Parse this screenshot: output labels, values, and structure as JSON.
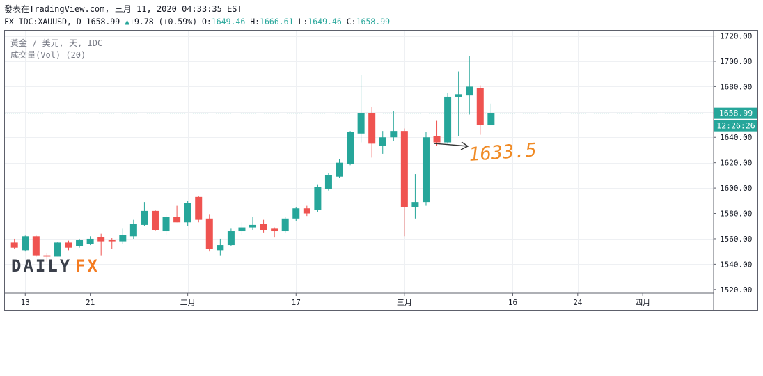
{
  "header": {
    "line1": "發表在TradingView.com, 三月 11, 2020 04:33:35 EST",
    "symbol_line": "FX_IDC:XAUUSD, D",
    "last": "1658.99",
    "arrow": "▲",
    "change": "+9.78 (+0.59%)",
    "o_label": "O:",
    "o": "1649.46",
    "h_label": "H:",
    "h": "1666.61",
    "l_label": "L:",
    "l": "1649.46",
    "c_label": "C:",
    "c": "1658.99"
  },
  "legend": {
    "title": "黃金 / 美元, 天, IDC",
    "volume": "成交量(Vol) (20)"
  },
  "price_tag": "1658.99",
  "countdown_tag": "12:26:26",
  "watermark": {
    "left": "DAILY",
    "right": "FX"
  },
  "annotation": "1633.5",
  "colors": {
    "up": "#26a69a",
    "down": "#ef5350",
    "annotation": "#f08a24"
  },
  "chart_data": {
    "type": "candlestick",
    "y_range": [
      1516,
      1724
    ],
    "y_ticks": [
      1520,
      1540,
      1560,
      1580,
      1600,
      1620,
      1640,
      1660,
      1680,
      1700,
      1720
    ],
    "y_tick_labels": [
      "1520.00",
      "1540.00",
      "1560.00",
      "1580.00",
      "1600.00",
      "1620.00",
      "1640.00",
      "1660.00",
      "1680.00",
      "1700.00",
      "1720.00"
    ],
    "x_labels": [
      {
        "label": "13",
        "bar": 1
      },
      {
        "label": "21",
        "bar": 7
      },
      {
        "label": "二月",
        "bar": 16
      },
      {
        "label": "17",
        "bar": 26
      },
      {
        "label": "三月",
        "bar": 36
      },
      {
        "label": "16",
        "bar": 46
      },
      {
        "label": "24",
        "bar": 52
      },
      {
        "label": "四月",
        "bar": 58
      }
    ],
    "last_price": 1658.99,
    "grid": true,
    "candles": [
      {
        "o": 1557.0,
        "h": 1560.0,
        "l": 1552.0,
        "c": 1553.0
      },
      {
        "o": 1551.0,
        "h": 1562.5,
        "l": 1550.0,
        "c": 1562.0
      },
      {
        "o": 1562.0,
        "h": 1562.5,
        "l": 1546.0,
        "c": 1547.0
      },
      {
        "o": 1547.0,
        "h": 1549.0,
        "l": 1542.0,
        "c": 1546.0
      },
      {
        "o": 1546.0,
        "h": 1557.5,
        "l": 1546.0,
        "c": 1557.0
      },
      {
        "o": 1557.0,
        "h": 1558.5,
        "l": 1551.0,
        "c": 1553.0
      },
      {
        "o": 1554.0,
        "h": 1560.0,
        "l": 1553.0,
        "c": 1559.0
      },
      {
        "o": 1556.0,
        "h": 1562.0,
        "l": 1555.0,
        "c": 1560.0
      },
      {
        "o": 1561.5,
        "h": 1564.0,
        "l": 1547.0,
        "c": 1558.0
      },
      {
        "o": 1559.0,
        "h": 1560.5,
        "l": 1552.0,
        "c": 1558.0
      },
      {
        "o": 1558.0,
        "h": 1568.0,
        "l": 1556.0,
        "c": 1563.0
      },
      {
        "o": 1562.0,
        "h": 1575.0,
        "l": 1560.0,
        "c": 1572.0
      },
      {
        "o": 1571.0,
        "h": 1589.0,
        "l": 1570.0,
        "c": 1582.0
      },
      {
        "o": 1582.0,
        "h": 1583.0,
        "l": 1566.0,
        "c": 1567.0
      },
      {
        "o": 1566.0,
        "h": 1579.0,
        "l": 1563.0,
        "c": 1577.0
      },
      {
        "o": 1577.0,
        "h": 1586.0,
        "l": 1573.0,
        "c": 1573.0
      },
      {
        "o": 1573.0,
        "h": 1590.0,
        "l": 1570.0,
        "c": 1588.0
      },
      {
        "o": 1593.0,
        "h": 1594.0,
        "l": 1573.0,
        "c": 1575.0
      },
      {
        "o": 1576.0,
        "h": 1579.0,
        "l": 1550.0,
        "c": 1552.0
      },
      {
        "o": 1551.0,
        "h": 1560.0,
        "l": 1547.0,
        "c": 1555.0
      },
      {
        "o": 1555.0,
        "h": 1568.0,
        "l": 1554.0,
        "c": 1566.0
      },
      {
        "o": 1566.0,
        "h": 1573.0,
        "l": 1563.0,
        "c": 1569.0
      },
      {
        "o": 1569.0,
        "h": 1577.0,
        "l": 1567.0,
        "c": 1571.0
      },
      {
        "o": 1572.0,
        "h": 1575.0,
        "l": 1565.0,
        "c": 1567.0
      },
      {
        "o": 1568.0,
        "h": 1569.0,
        "l": 1561.0,
        "c": 1566.0
      },
      {
        "o": 1566.0,
        "h": 1577.0,
        "l": 1565.0,
        "c": 1576.0
      },
      {
        "o": 1576.0,
        "h": 1585.0,
        "l": 1574.0,
        "c": 1584.0
      },
      {
        "o": 1584.0,
        "h": 1586.0,
        "l": 1578.0,
        "c": 1580.0
      },
      {
        "o": 1583.0,
        "h": 1603.0,
        "l": 1581.0,
        "c": 1601.0
      },
      {
        "o": 1599.0,
        "h": 1612.0,
        "l": 1598.0,
        "c": 1610.0
      },
      {
        "o": 1609.0,
        "h": 1623.0,
        "l": 1608.0,
        "c": 1620.0
      },
      {
        "o": 1619.0,
        "h": 1645.0,
        "l": 1618.0,
        "c": 1644.0
      },
      {
        "o": 1643.0,
        "h": 1689.0,
        "l": 1636.0,
        "c": 1659.0
      },
      {
        "o": 1659.0,
        "h": 1664.0,
        "l": 1624.0,
        "c": 1635.0
      },
      {
        "o": 1633.0,
        "h": 1645.0,
        "l": 1627.0,
        "c": 1640.0
      },
      {
        "o": 1640.0,
        "h": 1661.0,
        "l": 1637.0,
        "c": 1645.0
      },
      {
        "o": 1645.0,
        "h": 1647.0,
        "l": 1562.0,
        "c": 1585.0
      },
      {
        "o": 1585.0,
        "h": 1611.0,
        "l": 1576.0,
        "c": 1589.0
      },
      {
        "o": 1589.0,
        "h": 1644.0,
        "l": 1586.0,
        "c": 1640.0
      },
      {
        "o": 1641.0,
        "h": 1653.0,
        "l": 1633.0,
        "c": 1636.0
      },
      {
        "o": 1636.0,
        "h": 1675.0,
        "l": 1635.0,
        "c": 1672.0
      },
      {
        "o": 1672.0,
        "h": 1692.0,
        "l": 1641.0,
        "c": 1674.0
      },
      {
        "o": 1673.0,
        "h": 1704.0,
        "l": 1658.0,
        "c": 1680.0
      },
      {
        "o": 1679.0,
        "h": 1681.0,
        "l": 1642.0,
        "c": 1650.0
      },
      {
        "o": 1649.46,
        "h": 1666.61,
        "l": 1649.46,
        "c": 1658.99
      }
    ]
  }
}
